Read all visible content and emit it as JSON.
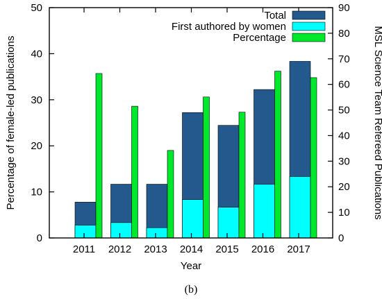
{
  "chart_data": {
    "type": "bar",
    "categories": [
      "2011",
      "2012",
      "2013",
      "2014",
      "2015",
      "2016",
      "2017"
    ],
    "xlabel": "Year",
    "ylabel": "Percentage of female-led publications",
    "y2label": "MSL Science Team Refereed Publications",
    "ylim": [
      0,
      50
    ],
    "y2lim": [
      0,
      90
    ],
    "yticks": [
      0,
      10,
      20,
      30,
      40,
      50
    ],
    "y2ticks": [
      0,
      10,
      20,
      30,
      40,
      50,
      60,
      70,
      80,
      90
    ],
    "legend_position": "top-right",
    "grid": false,
    "series": [
      {
        "name": "Total",
        "axis": "right",
        "color": "#23598c",
        "values": [
          14,
          21,
          21,
          49,
          44,
          58,
          69
        ]
      },
      {
        "name": "First authored by women",
        "axis": "right",
        "color": "#00ffff",
        "values": [
          5,
          6,
          4,
          15,
          12,
          21,
          24
        ]
      },
      {
        "name": "Percentage",
        "axis": "left",
        "color": "#00e82c",
        "values": [
          35.7,
          28.6,
          19.0,
          30.6,
          27.3,
          36.2,
          34.8
        ]
      }
    ]
  },
  "caption": "(b)"
}
